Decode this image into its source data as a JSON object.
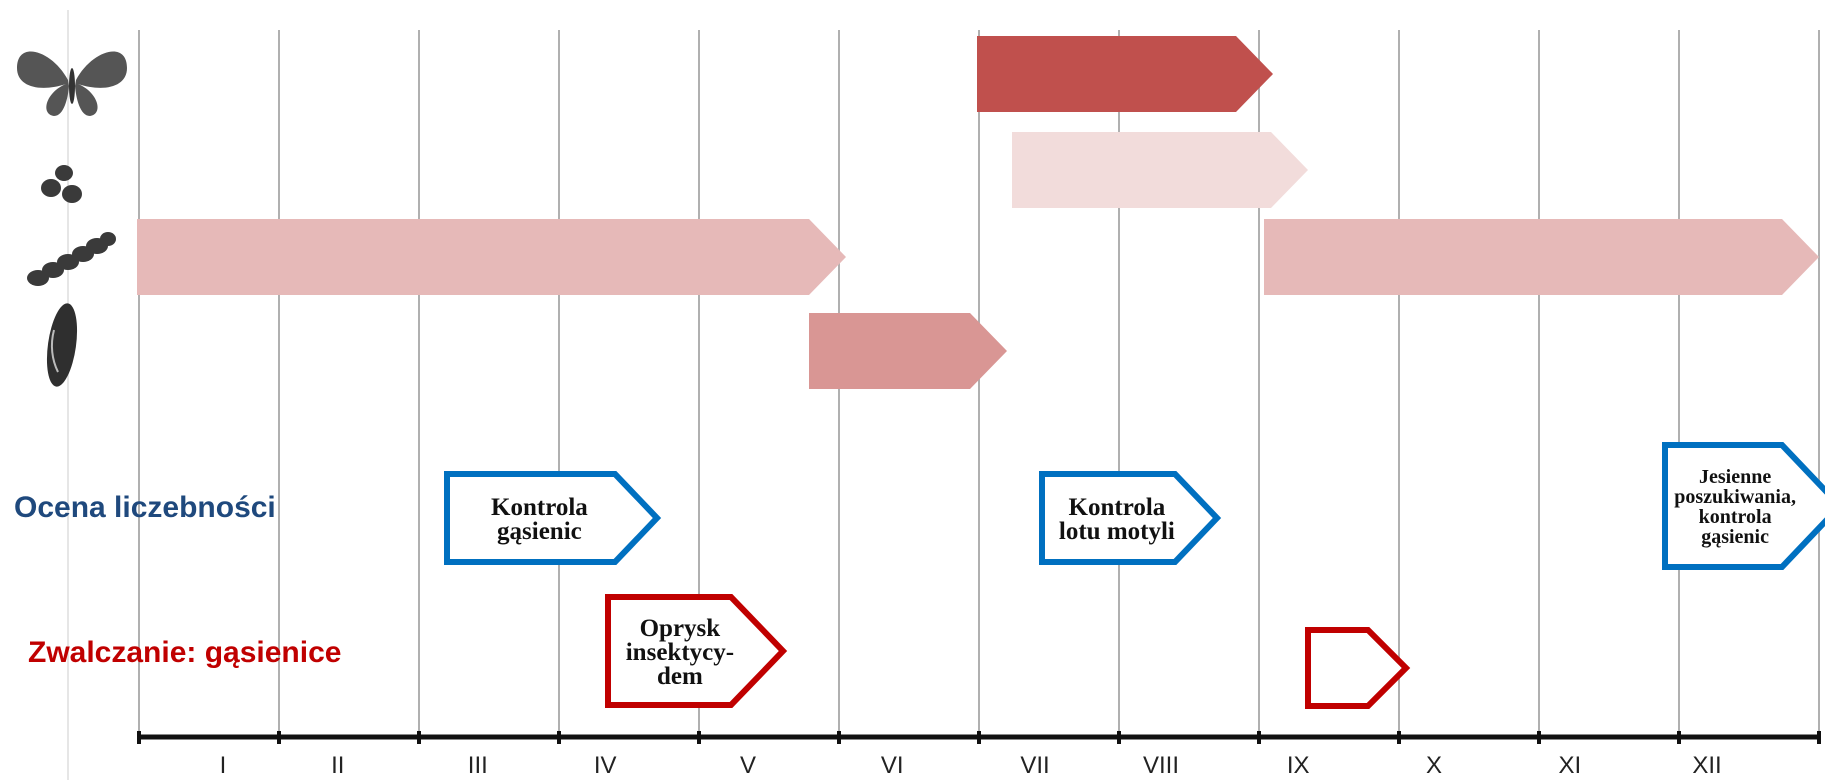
{
  "months": [
    "I",
    "II",
    "III",
    "IV",
    "V",
    "VI",
    "VII",
    "VIII",
    "IX",
    "X",
    "XI",
    "XII"
  ],
  "stages": [
    {
      "icon": "butterfly-icon",
      "bars": [
        {
          "start": 7.0,
          "end": 9.1,
          "color": "#c0504d"
        }
      ]
    },
    {
      "icon": "eggs-icon",
      "bars": [
        {
          "start": 7.25,
          "end": 9.35,
          "color": "#f2dcdb"
        }
      ]
    },
    {
      "icon": "caterpillar-icon",
      "bars": [
        {
          "start": 1.0,
          "end": 6.05,
          "color": "#e6b9b8"
        },
        {
          "start": 9.05,
          "end": 13.0,
          "color": "#e6b9b8"
        }
      ]
    },
    {
      "icon": "pupa-icon",
      "bars": [
        {
          "start": 5.8,
          "end": 7.2,
          "color": "#d99694"
        }
      ]
    }
  ],
  "monitoring": {
    "label": "Ocena liczebności",
    "color": "#1f497d",
    "box_color": "#0070c0",
    "boxes": [
      {
        "start": 3.2,
        "end": 4.7,
        "lines": [
          "Kontrola",
          "gąsienic"
        ]
      },
      {
        "start": 7.45,
        "end": 8.7,
        "lines": [
          "Kontrola",
          "lotu motyli"
        ]
      },
      {
        "start": 11.9,
        "end": 13.15,
        "lines": [
          "Jesienne",
          "poszukiwania,",
          "kontrola",
          "gąsienic"
        ]
      }
    ]
  },
  "control": {
    "label": "Zwalczanie: gąsienice",
    "color": "#c00000",
    "boxes": [
      {
        "start": 4.35,
        "end": 5.6,
        "lines": [
          "Oprysk",
          "insektycy-",
          "dem"
        ]
      },
      {
        "start": 9.35,
        "end": 10.05,
        "lines": []
      }
    ]
  }
}
